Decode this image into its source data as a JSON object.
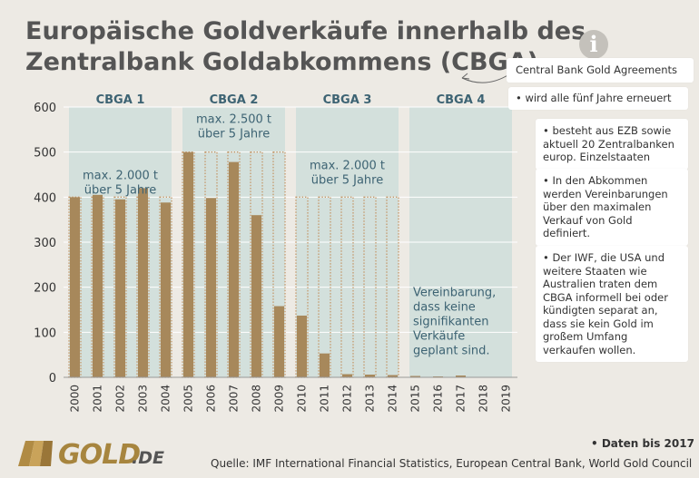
{
  "title_lines": [
    "Europäische Goldverkäufe innerhalb des",
    "Zentralbank Goldabkommens (CBGA)"
  ],
  "info": {
    "icon": "info-icon",
    "boxes": [
      "Central Bank Gold Agreements",
      "• wird alle fünf Jahre erneuert",
      "• besteht aus EZB sowie aktuell 20 Zentralbanken europ. Einzelstaaten",
      "• In den Abkommen werden Vereinbarungen über den maximalen Verkauf von Gold definiert.",
      "• Der IWF, die USA und weitere Staaten wie Australien traten dem CBGA informell bei oder kündigten separat an, dass sie kein Gold im großem Umfang verkaufen wollen."
    ]
  },
  "footer": {
    "note": "• Daten bis 2017",
    "source": "Quelle: IMF International Financial Statistics, European Central Bank, World Gold Council",
    "logo_gold": "GOLD",
    "logo_de": ".DE"
  },
  "colors": {
    "bar": "#a7885b",
    "limit_dots": "#c4986a",
    "period_band": "#d3e0dc",
    "period_label": "#3d6373",
    "grid": "#ffffff",
    "background": "#edeae4"
  },
  "chart_data": {
    "type": "bar",
    "categories": [
      "2000",
      "2001",
      "2002",
      "2003",
      "2004",
      "2005",
      "2006",
      "2007",
      "2008",
      "2009",
      "2010",
      "2011",
      "2012",
      "2013",
      "2014",
      "2015",
      "2016",
      "2017",
      "2018",
      "2019"
    ],
    "values": [
      400,
      405,
      395,
      420,
      388,
      500,
      398,
      478,
      360,
      158,
      137,
      53,
      7,
      6,
      5,
      3,
      2,
      4,
      0,
      0
    ],
    "limits": [
      400,
      400,
      400,
      400,
      400,
      500,
      500,
      500,
      500,
      500,
      400,
      400,
      400,
      400,
      400,
      null,
      null,
      null,
      null,
      null
    ],
    "ylim": [
      0,
      600
    ],
    "yticks": [
      0,
      100,
      200,
      300,
      400,
      500,
      600
    ],
    "grid": true,
    "periods": [
      {
        "label": "CBGA 1",
        "start": "2000",
        "end": "2004",
        "note": "max. 2.000 t\nüber 5 Jahre",
        "note_y": 440
      },
      {
        "label": "CBGA 2",
        "start": "2005",
        "end": "2009",
        "note": "max. 2.500 t\nüber 5 Jahre",
        "note_y": 565
      },
      {
        "label": "CBGA 3",
        "start": "2010",
        "end": "2014",
        "note": "max. 2.000 t\nüber 5 Jahre",
        "note_y": 462
      },
      {
        "label": "CBGA 4",
        "start": "2015",
        "end": "2019",
        "note": "Vereinbarung,\ndass keine\nsignifikanten\nVerkäufe\ngeplant sind.",
        "note_y": 180
      }
    ]
  }
}
